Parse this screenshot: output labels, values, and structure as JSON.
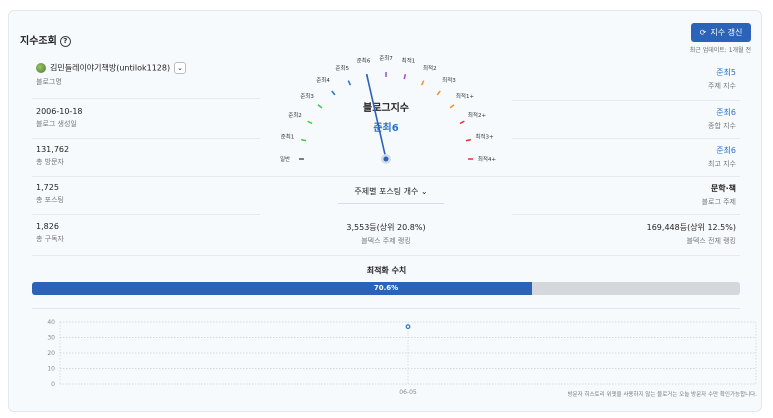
{
  "header": {
    "title": "지수조회",
    "help_icon": "question-circle-icon",
    "refresh_label": "지수 갱신",
    "refresh_icon": "refresh-icon",
    "last_update": "최근 업데이트:  1개월 전"
  },
  "left": [
    {
      "value": "김민들레이야기책방(untilok1128)",
      "label": "블로그명"
    },
    {
      "value": "2006-10-18",
      "label": "블로그 생성일"
    },
    {
      "value": "131,762",
      "label": "총 방문자"
    },
    {
      "value": "1,725",
      "label": "총 포스팅"
    },
    {
      "value": "1,826",
      "label": "총 구독자"
    }
  ],
  "right": [
    {
      "value": "준최5",
      "label": "주제 지수"
    },
    {
      "value": "준최6",
      "label": "종합 지수"
    },
    {
      "value": "준최6",
      "label": "최고 지수"
    },
    {
      "value": "문학·책",
      "label": "블로그 주제"
    },
    {
      "value": "169,448등(상위 12.5%)",
      "label": "블덱스 전체 랭킹"
    }
  ],
  "gauge": {
    "title": "블로그지수",
    "current": "준최6",
    "current_index": 6,
    "levels": [
      {
        "label": "일반",
        "color": "#555555"
      },
      {
        "label": "준최1",
        "color": "#3ccf3c"
      },
      {
        "label": "준최2",
        "color": "#3ccf3c"
      },
      {
        "label": "준최3",
        "color": "#3ccf3c"
      },
      {
        "label": "준최4",
        "color": "#2a73c6"
      },
      {
        "label": "준최5",
        "color": "#2a73c6"
      },
      {
        "label": "준최6",
        "color": "#2a73c6"
      },
      {
        "label": "준최7",
        "color": "#9b4fd0"
      },
      {
        "label": "최적1",
        "color": "#9b4fd0"
      },
      {
        "label": "최적2",
        "color": "#f0962a"
      },
      {
        "label": "최적3",
        "color": "#f0962a"
      },
      {
        "label": "최적1+",
        "color": "#f0962a"
      },
      {
        "label": "최적2+",
        "color": "#e53232"
      },
      {
        "label": "최적3+",
        "color": "#e53232"
      },
      {
        "label": "최적4+",
        "color": "#e53232"
      }
    ]
  },
  "center": {
    "posting_select": "주제별 포스팅 개수",
    "theme_rank_value": "3,553등(상위 20.8%)",
    "theme_rank_label": "블덱스 주제 랭킹"
  },
  "optimization": {
    "title": "최적화 수치",
    "percent": 70.6,
    "label": "70.6%"
  },
  "chart_data": {
    "type": "line",
    "categories": [
      "06-05"
    ],
    "values": [
      37
    ],
    "ylim": [
      0,
      40
    ],
    "yticks": [
      "0",
      "10",
      "20",
      "30",
      "40"
    ],
    "grid": true,
    "color": "#2a73c6"
  },
  "footnote": "방문자 히스토리 위젯을 사용하지 않는 블로거는 오늘 방문자 수만 확인가능합니다."
}
